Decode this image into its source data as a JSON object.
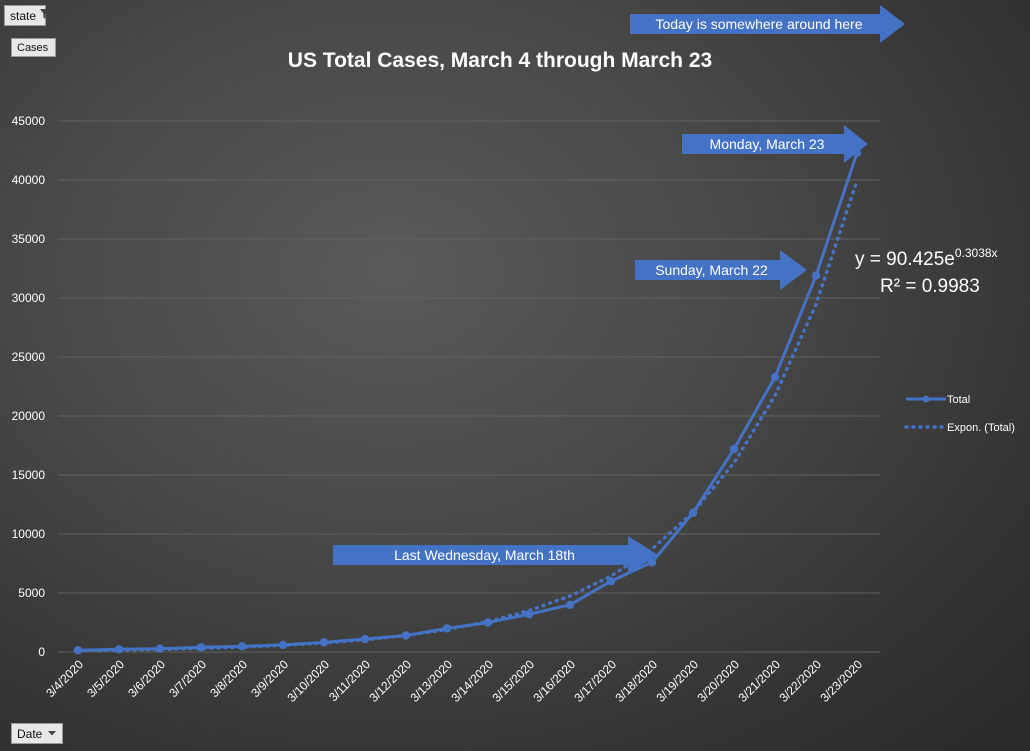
{
  "filters": {
    "state_label": "state",
    "date_label": "Date",
    "values_label": "Cases",
    "filter_icon": "funnel-filter-icon",
    "dropdown_icon": "triangle-dropdown-icon"
  },
  "colors": {
    "series": "#4472c4",
    "arrow_fill": "#4472c4",
    "text": "#ffffff",
    "axis_text": "#ffffff",
    "gridline": "#606060"
  },
  "chart_data": {
    "type": "line",
    "title": "US Total Cases, March 4 through March 23",
    "xlabel": "",
    "ylabel": "",
    "ylim": [
      0,
      45000
    ],
    "yticks": [
      0,
      5000,
      10000,
      15000,
      20000,
      25000,
      30000,
      35000,
      40000,
      45000
    ],
    "grid": true,
    "legend_position": "right",
    "categories": [
      "3/4/2020",
      "3/5/2020",
      "3/6/2020",
      "3/7/2020",
      "3/8/2020",
      "3/9/2020",
      "3/10/2020",
      "3/11/2020",
      "3/12/2020",
      "3/13/2020",
      "3/14/2020",
      "3/15/2020",
      "3/16/2020",
      "3/17/2020",
      "3/18/2020",
      "3/19/2020",
      "3/20/2020",
      "3/21/2020",
      "3/22/2020",
      "3/23/2020"
    ],
    "series": [
      {
        "name": "Total",
        "style": "solid-with-markers",
        "values": [
          150,
          230,
          280,
          400,
          480,
          600,
          820,
          1100,
          1400,
          2000,
          2500,
          3200,
          4000,
          6000,
          7600,
          11800,
          17200,
          23300,
          31900,
          42300
        ]
      },
      {
        "name": "Expon. (Total)",
        "style": "dotted",
        "trendline": {
          "type": "exponential",
          "a": 90.425,
          "b": 0.3038
        },
        "values": [
          123,
          167,
          227,
          307,
          416,
          564,
          765,
          1036,
          1405,
          1905,
          2583,
          3501,
          4747,
          6434,
          8723,
          11826,
          16033,
          21735,
          29466,
          39947
        ]
      }
    ],
    "equation": {
      "prefix": "y = 90.425e",
      "exponent": "0.3038x",
      "r2": "R² = 0.9983"
    },
    "annotations": [
      {
        "text": "Today is somewhere around here",
        "style": "arrow-right"
      },
      {
        "text": "Monday, March 23",
        "style": "arrow-right"
      },
      {
        "text": "Sunday, March 22",
        "style": "arrow-right"
      },
      {
        "text": "Last Wednesday, March 18th",
        "style": "arrow-right"
      }
    ]
  }
}
